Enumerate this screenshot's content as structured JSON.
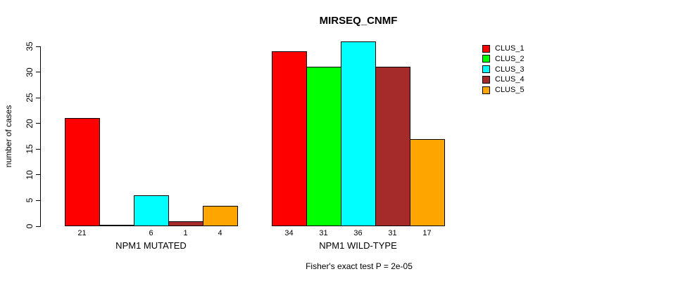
{
  "title": "MIRSEQ_CNMF",
  "chart_data": {
    "type": "bar",
    "title": "MIRSEQ_CNMF",
    "xlabel": "",
    "ylabel": "number of cases",
    "ylim": [
      0,
      35
    ],
    "yticks": [
      0,
      5,
      10,
      15,
      20,
      25,
      30,
      35
    ],
    "grid": false,
    "legend_position": "top-right",
    "categories": [
      "NPM1 MUTATED",
      "NPM1 WILD-TYPE"
    ],
    "series": [
      {
        "name": "CLUS_1",
        "color": "#FF0000",
        "values": [
          21,
          34
        ]
      },
      {
        "name": "CLUS_2",
        "color": "#00FF00",
        "values": [
          0,
          31
        ]
      },
      {
        "name": "CLUS_3",
        "color": "#00FFFF",
        "values": [
          6,
          36
        ]
      },
      {
        "name": "CLUS_4",
        "color": "#A52A2A",
        "values": [
          1,
          31
        ]
      },
      {
        "name": "CLUS_5",
        "color": "#FFA500",
        "values": [
          4,
          17
        ]
      }
    ],
    "bar_value_labels": [
      [
        "21",
        "",
        "6",
        "1",
        "4"
      ],
      [
        "34",
        "31",
        "36",
        "31",
        "17"
      ]
    ],
    "annotation": "Fisher's exact test P = 2e-05"
  }
}
